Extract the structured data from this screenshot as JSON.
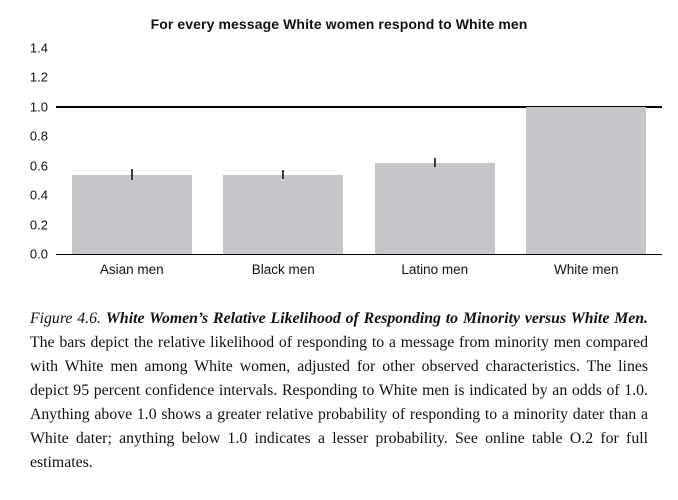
{
  "chart_data": {
    "type": "bar",
    "title": "For every message White women respond to White men",
    "categories": [
      "Asian men",
      "Black men",
      "Latino men",
      "White men"
    ],
    "values": [
      0.54,
      0.54,
      0.62,
      1.0
    ],
    "error_bars": [
      0.04,
      0.03,
      0.03,
      0
    ],
    "ylim": [
      0,
      1.4
    ],
    "ytick_labels": [
      "0.0",
      "0.2",
      "0.4",
      "0.6",
      "0.8",
      "1.0",
      "1.2",
      "1.4"
    ],
    "reference_line": 1.0,
    "bar_color": "#c5c6c9",
    "grid": false,
    "legend": false,
    "xlabel": "",
    "ylabel": ""
  },
  "caption": {
    "label": "Figure 4.6.",
    "title": "White Women’s Relative Likelihood of Responding to Minority versus White Men.",
    "body": "The bars depict the relative likelihood of responding to a message from minority men compared with White men among White women, adjusted for other observed characteristics. The lines depict 95 percent confidence intervals. Responding to White men is indicated by an odds of 1.0. Anything above 1.0 shows a greater relative probability of responding to a minority dater than a White dater; anything below 1.0 indicates a lesser probability. See online table O.2 for full estimates."
  }
}
